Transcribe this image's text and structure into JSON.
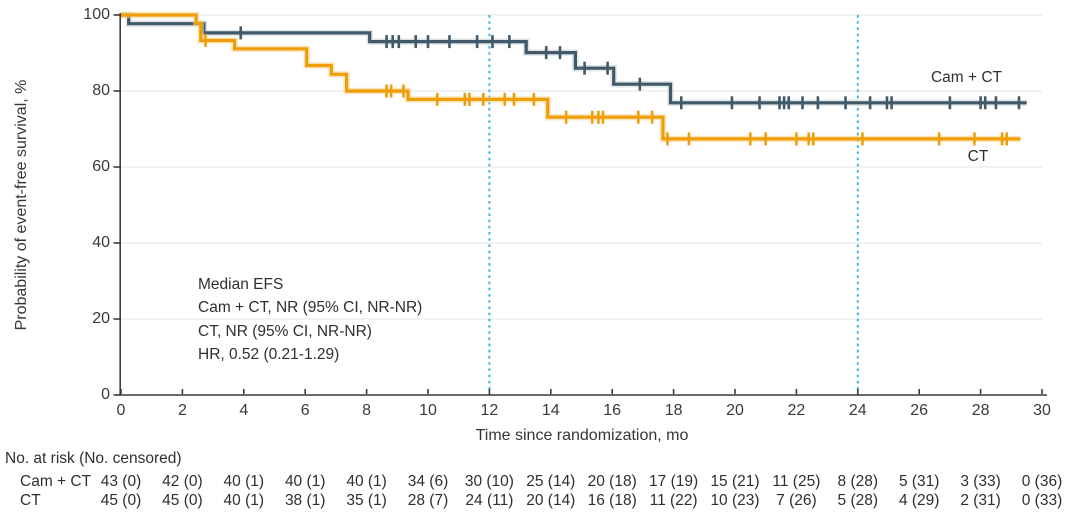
{
  "colors": {
    "cam_ct": "#415968",
    "cam_ct_halo": "#c6ced4",
    "ct": "#f09e08",
    "ct_halo": "#f8d18c",
    "reference_line": "#3db5e8",
    "grid": "#ebebeb",
    "axis": "#3c3c3c"
  },
  "chart_data": {
    "type": "line",
    "subtype": "kaplan-meier-step",
    "title": "",
    "xlabel": "Time since randomization, mo",
    "ylabel": "Probability of event-free survival, %",
    "xlim": [
      0,
      30
    ],
    "ylim": [
      0,
      100
    ],
    "x_ticks": [
      0,
      2,
      4,
      6,
      8,
      10,
      12,
      14,
      16,
      18,
      20,
      22,
      24,
      26,
      28,
      30
    ],
    "y_ticks": [
      0,
      20,
      40,
      60,
      80,
      100
    ],
    "grid": "horizontal-light",
    "reference_lines_x": [
      12,
      24
    ],
    "legend_position": "curve-end-labels",
    "series": [
      {
        "name": "Cam + CT",
        "label": "Cam + CT",
        "color": "#415968",
        "halo": "#c6ced4",
        "steps": [
          [
            0,
            100
          ],
          [
            0.25,
            97.7
          ],
          [
            2.7,
            95.3
          ],
          [
            8.1,
            93
          ],
          [
            13.2,
            90.1
          ],
          [
            14.8,
            86
          ],
          [
            16.05,
            81.8
          ],
          [
            17.9,
            76.9
          ]
        ],
        "end_x": 29.5,
        "censor_ticks": [
          [
            3.9,
            95.3
          ],
          [
            8.65,
            93
          ],
          [
            8.85,
            93
          ],
          [
            9.05,
            93
          ],
          [
            9.6,
            93
          ],
          [
            10.0,
            93
          ],
          [
            10.7,
            93
          ],
          [
            11.6,
            93
          ],
          [
            12.1,
            93
          ],
          [
            12.65,
            93
          ],
          [
            13.85,
            90.1
          ],
          [
            14.3,
            90.1
          ],
          [
            15.1,
            86
          ],
          [
            15.85,
            86
          ],
          [
            16.9,
            81.8
          ],
          [
            18.25,
            76.9
          ],
          [
            19.9,
            76.9
          ],
          [
            20.8,
            76.9
          ],
          [
            21.45,
            76.9
          ],
          [
            21.6,
            76.9
          ],
          [
            21.75,
            76.9
          ],
          [
            22.2,
            76.9
          ],
          [
            22.7,
            76.9
          ],
          [
            23.6,
            76.9
          ],
          [
            24.4,
            76.9
          ],
          [
            24.95,
            76.9
          ],
          [
            25.1,
            76.9
          ],
          [
            27.0,
            76.9
          ],
          [
            28.0,
            76.9
          ],
          [
            28.15,
            76.9
          ],
          [
            28.5,
            76.9
          ],
          [
            29.25,
            76.9
          ]
        ]
      },
      {
        "name": "CT",
        "label": "CT",
        "color": "#f09e08",
        "halo": "#f8d18c",
        "steps": [
          [
            0,
            100
          ],
          [
            2.45,
            97.8
          ],
          [
            2.6,
            93.3
          ],
          [
            3.7,
            91.1
          ],
          [
            6.05,
            86.7
          ],
          [
            6.85,
            84.4
          ],
          [
            7.35,
            80
          ],
          [
            9.35,
            77.8
          ],
          [
            13.9,
            73.1
          ],
          [
            17.65,
            67.4
          ]
        ],
        "end_x": 29.3,
        "censor_ticks": [
          [
            2.75,
            93.3
          ],
          [
            8.65,
            80
          ],
          [
            8.8,
            80
          ],
          [
            9.2,
            80
          ],
          [
            10.3,
            77.8
          ],
          [
            11.2,
            77.8
          ],
          [
            11.35,
            77.8
          ],
          [
            11.8,
            77.8
          ],
          [
            12.5,
            77.8
          ],
          [
            12.8,
            77.8
          ],
          [
            13.45,
            77.8
          ],
          [
            14.5,
            73.1
          ],
          [
            15.35,
            73.1
          ],
          [
            15.55,
            73.1
          ],
          [
            15.7,
            73.1
          ],
          [
            16.85,
            73.1
          ],
          [
            17.3,
            73.1
          ],
          [
            17.8,
            67.4
          ],
          [
            18.5,
            67.4
          ],
          [
            20.5,
            67.4
          ],
          [
            21.0,
            67.4
          ],
          [
            22.0,
            67.4
          ],
          [
            22.4,
            67.4
          ],
          [
            22.55,
            67.4
          ],
          [
            24.15,
            67.4
          ],
          [
            26.65,
            67.4
          ],
          [
            27.8,
            67.4
          ],
          [
            28.7,
            67.4
          ],
          [
            28.85,
            67.4
          ]
        ]
      }
    ],
    "annotation": {
      "lines": [
        "Median EFS",
        "Cam + CT, NR (95% CI, NR-NR)",
        "CT, NR (95% CI, NR-NR)",
        "HR, 0.52 (0.21-1.29)"
      ]
    }
  },
  "risk_table": {
    "title": "No. at risk (No. censored)",
    "time_points": [
      0,
      2,
      4,
      6,
      8,
      10,
      12,
      14,
      16,
      18,
      20,
      22,
      24,
      26,
      28,
      30
    ],
    "rows": [
      {
        "label": "Cam + CT",
        "values": [
          "43 (0)",
          "42 (0)",
          "40 (1)",
          "40 (1)",
          "40 (1)",
          "34 (6)",
          "30 (10)",
          "25 (14)",
          "20 (18)",
          "17 (19)",
          "15 (21)",
          "11 (25)",
          "8 (28)",
          "5 (31)",
          "3 (33)",
          "0 (36)"
        ]
      },
      {
        "label": "CT",
        "values": [
          "45 (0)",
          "45 (0)",
          "40 (1)",
          "38 (1)",
          "35 (1)",
          "28 (7)",
          "24 (11)",
          "20 (14)",
          "16 (18)",
          "11 (22)",
          "10 (23)",
          "7 (26)",
          "5 (28)",
          "4 (29)",
          "2 (31)",
          "0 (33)"
        ]
      }
    ]
  }
}
